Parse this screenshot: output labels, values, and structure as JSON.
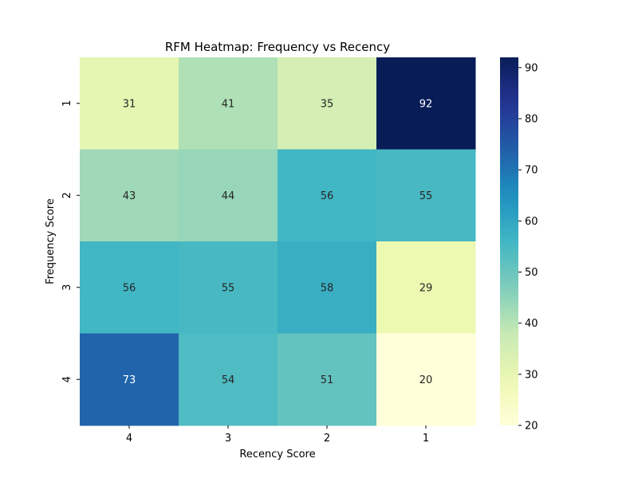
{
  "chart_data": {
    "type": "heatmap",
    "title": "RFM Heatmap: Frequency vs Recency",
    "xlabel": "Recency Score",
    "ylabel": "Frequency Score",
    "x_categories": [
      "4",
      "3",
      "2",
      "1"
    ],
    "y_categories": [
      "1",
      "2",
      "3",
      "4"
    ],
    "values": [
      [
        31,
        41,
        35,
        92
      ],
      [
        43,
        44,
        56,
        55
      ],
      [
        56,
        55,
        58,
        29
      ],
      [
        73,
        54,
        51,
        20
      ]
    ],
    "colormap": "YlGnBu",
    "colorbar": {
      "vmin": 20,
      "vmax": 92,
      "ticks": [
        20,
        30,
        40,
        50,
        60,
        70,
        80,
        90
      ]
    },
    "annotations": true
  }
}
